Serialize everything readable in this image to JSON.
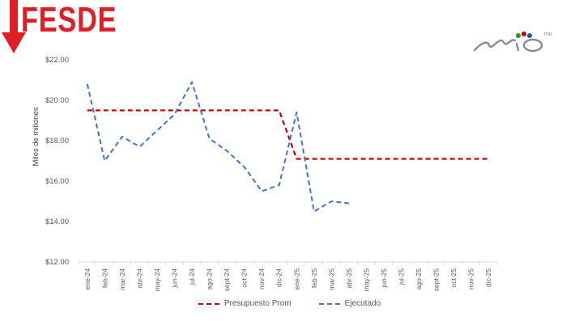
{
  "header": {
    "title": "FESDE",
    "title_color": "#e01e26",
    "arrow_icon": "down-arrow-icon",
    "logo": "brand-logo",
    "logo_text": "mio"
  },
  "chart_data": {
    "type": "line",
    "categories": [
      "ene-24",
      "feb-24",
      "mar-24",
      "abr-24",
      "may-24",
      "jun-24",
      "jul-24",
      "ago-24",
      "sept-24",
      "oct-24",
      "nov-24",
      "dic-24",
      "ene-25",
      "feb-25",
      "mar-25",
      "abr-25",
      "may-25",
      "jun-25",
      "jul-25",
      "ago-25",
      "sept-25",
      "oct-25",
      "nov-25",
      "dic-25"
    ],
    "ylabel": "Miles de millones",
    "ylim": [
      12,
      22
    ],
    "yticks": [
      12,
      14,
      16,
      18,
      20,
      22
    ],
    "ytick_labels": [
      "$12.00",
      "$14.00",
      "$16.00",
      "$18.00",
      "$20.00",
      "$22.00"
    ],
    "grid": false,
    "legend_position": "bottom",
    "series": [
      {
        "name": "Presupuesto Prom",
        "color": "#c00000",
        "style": "dashed",
        "values": [
          19.5,
          19.5,
          19.5,
          19.5,
          19.5,
          19.5,
          19.5,
          19.5,
          19.5,
          19.5,
          19.5,
          19.5,
          17.1,
          17.1,
          17.1,
          17.1,
          17.1,
          17.1,
          17.1,
          17.1,
          17.1,
          17.1,
          17.1,
          17.1
        ]
      },
      {
        "name": "Ejecutado",
        "color": "#4472c4",
        "style": "dashed",
        "values": [
          20.8,
          17.0,
          18.2,
          17.7,
          18.5,
          19.3,
          20.9,
          18.1,
          17.5,
          16.7,
          15.5,
          15.8,
          19.4,
          14.5,
          15.0,
          14.9,
          null,
          null,
          null,
          null,
          null,
          null,
          null,
          null
        ]
      }
    ]
  }
}
